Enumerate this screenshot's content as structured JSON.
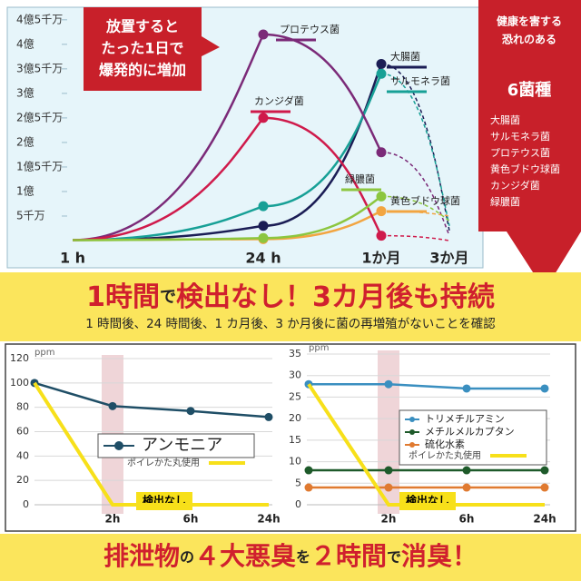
{
  "callout": [
    "放置すると",
    "たった1日で",
    "爆発的に増加"
  ],
  "side_panel": {
    "title": [
      "健康を害する",
      "恐れのある",
      "6菌種"
    ]
  },
  "banner_top": {
    "parts": [
      "1時間",
      "で",
      "検出なし！3カ月後も持続"
    ],
    "subtitle": "1 時間後、24 時間後、1 カ月後、3 か月後に菌の再増殖がないことを確認"
  },
  "banner_bottom": {
    "parts": [
      "排泄物",
      "の",
      "４大悪臭",
      "を",
      "２時間",
      "で",
      "消臭！"
    ]
  },
  "chart_data": [
    {
      "type": "line",
      "categories": [
        "1 h",
        "24 h",
        "1か月",
        "3か月"
      ],
      "ylim": [
        0,
        4.7
      ],
      "yticks": [
        {
          "value": 0.5,
          "label": "5千万"
        },
        {
          "value": 1,
          "label": "1億"
        },
        {
          "value": 1.5,
          "label": "1億5千万"
        },
        {
          "value": 2,
          "label": "2億"
        },
        {
          "value": 2.5,
          "label": "2億5千万"
        },
        {
          "value": 3,
          "label": "3億"
        },
        {
          "value": 3.5,
          "label": "3億5千万"
        },
        {
          "value": 4,
          "label": "4億"
        },
        {
          "value": 4.5,
          "label": "4億5千万"
        }
      ],
      "grid": false,
      "series": [
        {
          "name": "大腸菌",
          "color": "#1b1d55",
          "values": [
            0.01,
            0.3,
            3.6,
            0.2
          ]
        },
        {
          "name": "サルモネラ菌",
          "color": "#17a096",
          "values": [
            0.01,
            0.7,
            3.4,
            0.3
          ]
        },
        {
          "name": "プロテウス菌",
          "color": "#7b2a78",
          "values": [
            0.01,
            4.2,
            1.8,
            0.1
          ]
        },
        {
          "name": "黄色ブドウ球菌",
          "color": "#f2a541",
          "values": [
            0.01,
            0.03,
            0.6,
            0.5
          ]
        },
        {
          "name": "カンジダ菌",
          "color": "#cf1a4b",
          "values": [
            0.01,
            2.5,
            0.1,
            0
          ]
        },
        {
          "name": "緑膿菌",
          "color": "#8cc63f",
          "values": [
            0.01,
            0.05,
            0.9,
            0.4
          ]
        }
      ]
    },
    {
      "type": "line",
      "y_label": "ppm",
      "categories": [
        null,
        "2h",
        "6h",
        "24h"
      ],
      "ylim": [
        0,
        120
      ],
      "yticks": [
        0,
        20,
        40,
        60,
        80,
        100,
        120
      ],
      "grid": true,
      "annotation": "検出なし",
      "series": [
        {
          "name": "アンモニア",
          "color": "#1f4e66",
          "values": [
            100,
            81,
            77,
            72
          ],
          "marker": true
        },
        {
          "name": "ポイレかた丸使用",
          "color": "#f7e01a",
          "values": [
            100,
            0,
            0,
            0
          ],
          "marker": false
        }
      ]
    },
    {
      "type": "line",
      "y_label": "ppm",
      "categories": [
        null,
        "2h",
        "6h",
        "24h"
      ],
      "ylim": [
        0,
        35
      ],
      "yticks": [
        0,
        5,
        10,
        15,
        20,
        25,
        30,
        35
      ],
      "grid": true,
      "annotation": "検出なし",
      "series": [
        {
          "name": "トリメチルアミン",
          "color": "#3a8fc0",
          "values": [
            28,
            28,
            27,
            27
          ],
          "marker": true
        },
        {
          "name": "メチルメルカプタン",
          "color": "#1e5a2a",
          "values": [
            8,
            8,
            8,
            8
          ],
          "marker": true
        },
        {
          "name": "硫化水素",
          "color": "#e07a30",
          "values": [
            4,
            4,
            4,
            4
          ],
          "marker": true
        },
        {
          "name": "ポイレかた丸使用",
          "color": "#f7e01a",
          "values": [
            28,
            0,
            0,
            0
          ],
          "marker": false
        }
      ]
    }
  ]
}
